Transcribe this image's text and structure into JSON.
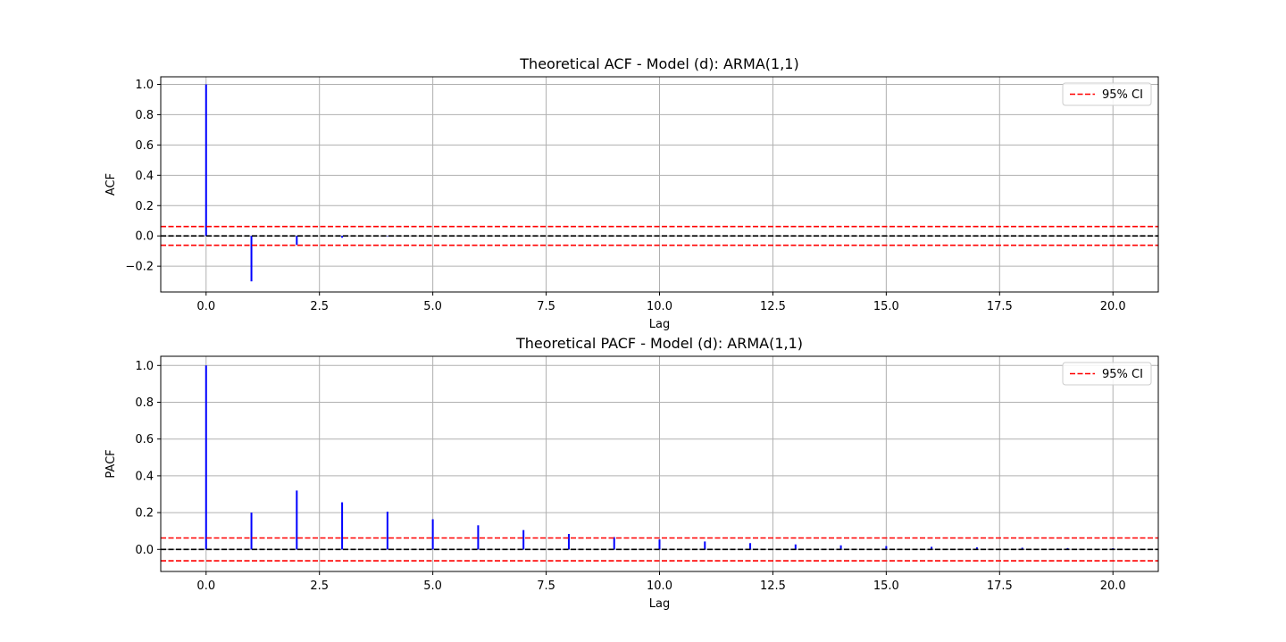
{
  "chart_data": [
    {
      "type": "bar",
      "title": "Theoretical ACF - Model (d): ARMA(1,1)",
      "xlabel": "Lag",
      "ylabel": "ACF",
      "xlim": [
        -1,
        21
      ],
      "ylim": [
        -0.37,
        1.05
      ],
      "xticks": [
        0.0,
        2.5,
        5.0,
        7.5,
        10.0,
        12.5,
        15.0,
        17.5,
        20.0
      ],
      "xtick_labels": [
        "0.0",
        "2.5",
        "5.0",
        "7.5",
        "10.0",
        "12.5",
        "15.0",
        "17.5",
        "20.0"
      ],
      "yticks": [
        -0.2,
        0.0,
        0.2,
        0.4,
        0.6,
        0.8,
        1.0
      ],
      "ytick_labels": [
        "−0.2",
        "0.0",
        "0.2",
        "0.4",
        "0.6",
        "0.8",
        "1.0"
      ],
      "grid": true,
      "legend_position": "top-right",
      "lags": [
        0,
        1,
        2,
        3,
        4,
        5,
        6,
        7,
        8,
        9,
        10,
        11,
        12,
        13,
        14,
        15,
        16,
        17,
        18,
        19,
        20
      ],
      "values": [
        1.0,
        -0.3,
        -0.06,
        -0.012,
        -0.0024,
        -0.0005,
        -0.0001,
        0,
        0,
        0,
        0,
        0,
        0,
        0,
        0,
        0,
        0,
        0,
        0,
        0,
        0
      ],
      "ci": 0.062,
      "legend": "95% CI",
      "colors": {
        "stem": "#0000ff",
        "ci": "#ff0000",
        "zero": "#000000",
        "grid": "#b0b0b0"
      }
    },
    {
      "type": "bar",
      "title": "Theoretical PACF - Model (d): ARMA(1,1)",
      "xlabel": "Lag",
      "ylabel": "PACF",
      "xlim": [
        -1,
        21
      ],
      "ylim": [
        -0.12,
        1.05
      ],
      "xticks": [
        0.0,
        2.5,
        5.0,
        7.5,
        10.0,
        12.5,
        15.0,
        17.5,
        20.0
      ],
      "xtick_labels": [
        "0.0",
        "2.5",
        "5.0",
        "7.5",
        "10.0",
        "12.5",
        "15.0",
        "17.5",
        "20.0"
      ],
      "yticks": [
        0.0,
        0.2,
        0.4,
        0.6,
        0.8,
        1.0
      ],
      "ytick_labels": [
        "0.0",
        "0.2",
        "0.4",
        "0.6",
        "0.8",
        "1.0"
      ],
      "grid": true,
      "legend_position": "top-right",
      "lags": [
        0,
        1,
        2,
        3,
        4,
        5,
        6,
        7,
        8,
        9,
        10,
        11,
        12,
        13,
        14,
        15,
        16,
        17,
        18,
        19,
        20
      ],
      "values": [
        1.0,
        0.2,
        0.32,
        0.256,
        0.205,
        0.164,
        0.131,
        0.105,
        0.084,
        0.067,
        0.054,
        0.043,
        0.034,
        0.027,
        0.022,
        0.018,
        0.014,
        0.011,
        0.009,
        0.007,
        0.006
      ],
      "ci": 0.062,
      "legend": "95% CI",
      "colors": {
        "stem": "#0000ff",
        "ci": "#ff0000",
        "zero": "#000000",
        "grid": "#b0b0b0"
      }
    }
  ]
}
